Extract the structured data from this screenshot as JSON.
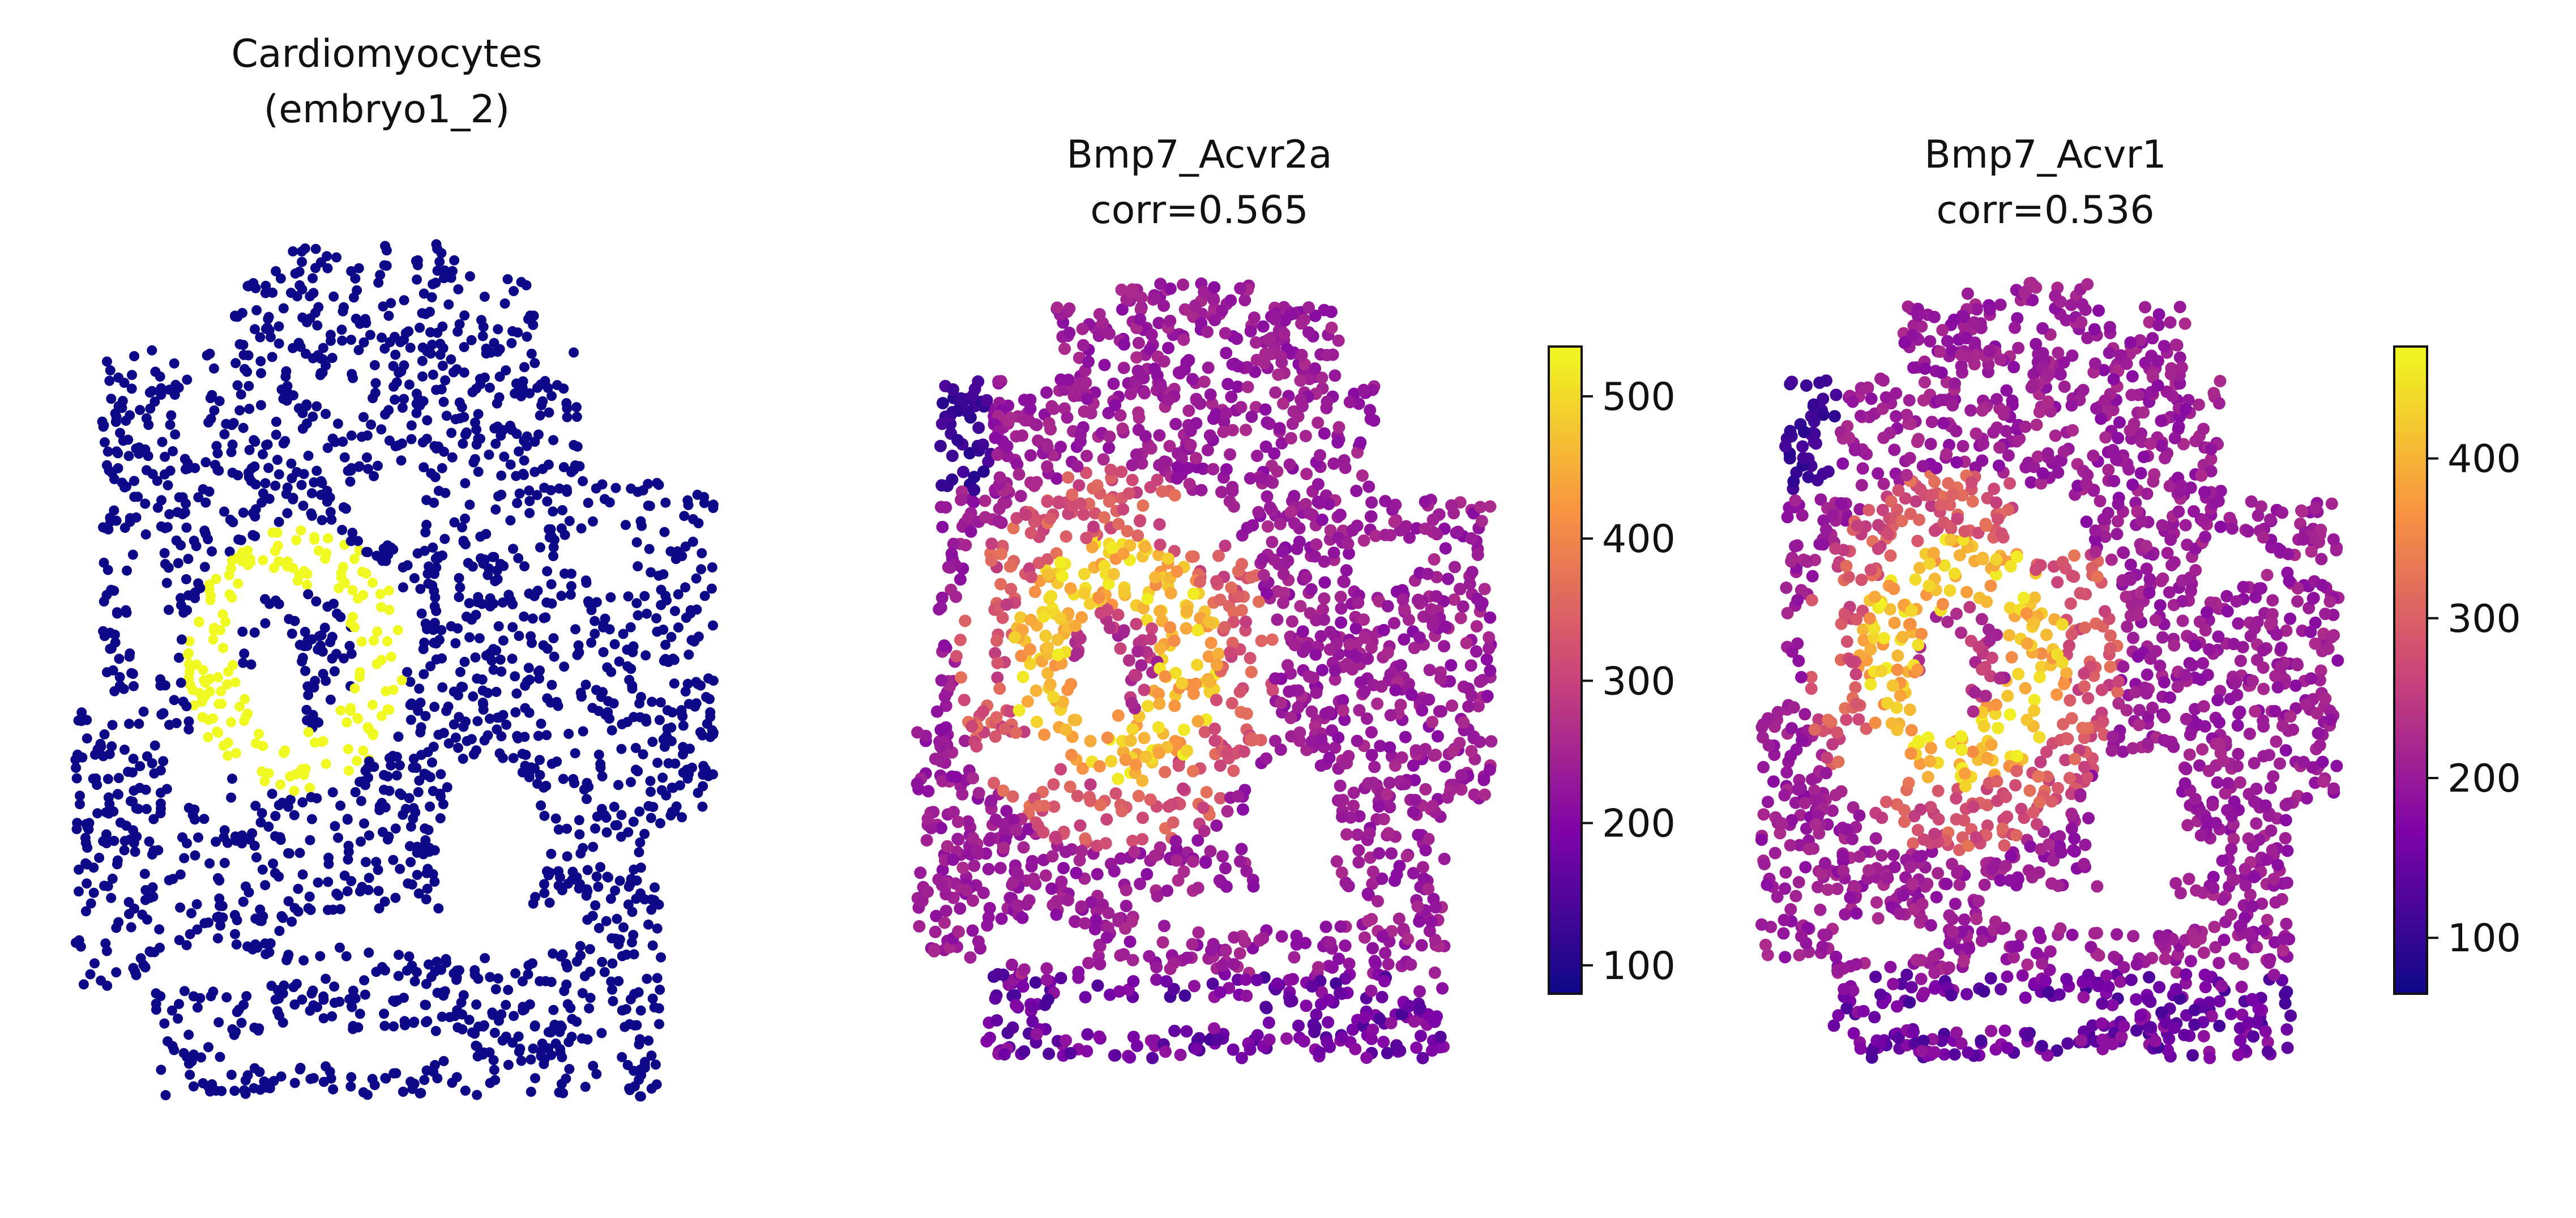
{
  "chart_data": [
    {
      "type": "scatter",
      "title_lines": [
        "Cardiomyocytes",
        "(embryo1_2)"
      ],
      "colors": {
        "background": "#0d0887",
        "highlight": "#f0f921"
      }
    },
    {
      "type": "scatter",
      "title_lines": [
        "Bmp7_Acvr2a",
        "corr=0.565"
      ],
      "colormap": "plasma",
      "colorbar": {
        "range": [
          80,
          535
        ],
        "ticks": [
          100,
          200,
          300,
          400,
          500
        ],
        "tick_labels": [
          "100",
          "200",
          "300",
          "400",
          "500"
        ]
      }
    },
    {
      "type": "scatter",
      "title_lines": [
        "Bmp7_Acvr1",
        "corr=0.536"
      ],
      "colormap": "plasma",
      "colorbar": {
        "range": [
          65,
          470
        ],
        "ticks": [
          100,
          200,
          300,
          400
        ],
        "tick_labels": [
          "100",
          "200",
          "300",
          "400"
        ]
      }
    }
  ]
}
